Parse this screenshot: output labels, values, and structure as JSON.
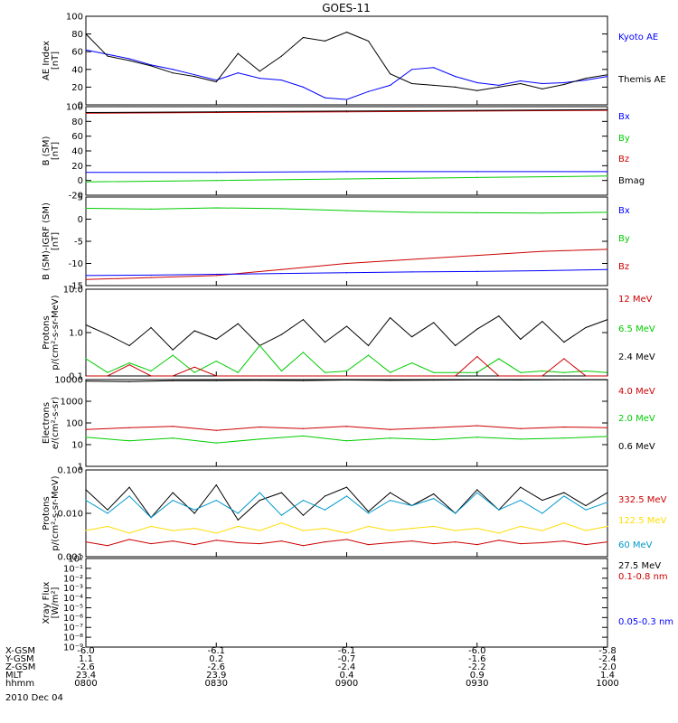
{
  "title": "GOES-11",
  "date_label": "2010 Dec 04",
  "colors": {
    "black": "#000000",
    "blue": "#0000ff",
    "green": "#00cc00",
    "red": "#cc0000",
    "yellow": "#ffdd00",
    "cyan": "#0099cc"
  },
  "chart_data": [
    {
      "type": "line",
      "panel": "ae",
      "ylabel": [
        "AE Index",
        "[nT]"
      ],
      "ylim": [
        0,
        100
      ],
      "yscale": "linear",
      "yticks": [
        "100",
        "80",
        "60",
        "40",
        "20",
        "0"
      ],
      "x": [
        "0800",
        "0805",
        "0810",
        "0815",
        "0820",
        "0825",
        "0830",
        "0835",
        "0840",
        "0845",
        "0850",
        "0855",
        "0900",
        "0905",
        "0910",
        "0915",
        "0920",
        "0925",
        "0930",
        "0935",
        "0940",
        "0945",
        "0950",
        "0955",
        "1000"
      ],
      "series": [
        {
          "name": "Kyoto AE",
          "color": "blue",
          "values": [
            62,
            57,
            52,
            45,
            40,
            34,
            28,
            36,
            30,
            28,
            20,
            8,
            6,
            15,
            22,
            40,
            42,
            32,
            25,
            22,
            27,
            24,
            25,
            28,
            32
          ]
        },
        {
          "name": "Themis AE",
          "color": "black",
          "values": [
            80,
            55,
            50,
            44,
            36,
            32,
            26,
            58,
            38,
            55,
            76,
            72,
            82,
            72,
            35,
            24,
            22,
            20,
            16,
            20,
            24,
            18,
            23,
            30,
            34
          ]
        }
      ],
      "legend": [
        {
          "text": "Kyoto AE",
          "color": "blue"
        },
        {
          "text": "Themis AE",
          "color": "black"
        }
      ]
    },
    {
      "type": "line",
      "panel": "b",
      "ylabel": [
        "B (SM)",
        "[nT]"
      ],
      "ylim": [
        -20,
        100
      ],
      "yscale": "linear",
      "yticks": [
        "100",
        "80",
        "60",
        "40",
        "20",
        "0",
        "-20"
      ],
      "x": [
        "0800",
        "0830",
        "0900",
        "0930",
        "1000"
      ],
      "series": [
        {
          "name": "Bz",
          "color": "red",
          "values": [
            91,
            92,
            93,
            94,
            95
          ]
        },
        {
          "name": "Bmag",
          "color": "black",
          "values": [
            92,
            93,
            94,
            95,
            96
          ]
        },
        {
          "name": "Bx",
          "color": "blue",
          "values": [
            11,
            11,
            12,
            12,
            12
          ]
        },
        {
          "name": "By",
          "color": "green",
          "values": [
            -2,
            0,
            2,
            4,
            6
          ]
        }
      ],
      "legend": [
        {
          "text": "Bx",
          "color": "blue"
        },
        {
          "text": "By",
          "color": "green"
        },
        {
          "text": "Bz",
          "color": "red"
        },
        {
          "text": "Bmag",
          "color": "black"
        }
      ]
    },
    {
      "type": "line",
      "panel": "dbigrf",
      "ylabel": [
        "B (SM)-IGRF (SM)",
        "[nT]"
      ],
      "ylim": [
        -16,
        6
      ],
      "yscale": "linear",
      "yticks": [
        "5",
        "0",
        "-5",
        "-10",
        "-15"
      ],
      "x": [
        "0800",
        "0815",
        "0830",
        "0845",
        "0900",
        "0915",
        "0930",
        "0945",
        "1000"
      ],
      "series": [
        {
          "name": "By",
          "color": "green",
          "values": [
            3.2,
            3.0,
            3.3,
            3.1,
            2.6,
            2.2,
            2.1,
            2.0,
            2.2
          ]
        },
        {
          "name": "Bz",
          "color": "red",
          "values": [
            -14.5,
            -14.0,
            -13.5,
            -12.0,
            -10.5,
            -9.5,
            -8.5,
            -7.5,
            -7.0
          ]
        },
        {
          "name": "Bx",
          "color": "blue",
          "values": [
            -13.5,
            -13.4,
            -13.2,
            -13.0,
            -12.8,
            -12.6,
            -12.5,
            -12.3,
            -12.0
          ]
        }
      ],
      "legend": [
        {
          "text": "Bx",
          "color": "blue"
        },
        {
          "text": "By",
          "color": "green"
        },
        {
          "text": "Bz",
          "color": "red"
        }
      ]
    },
    {
      "type": "line",
      "panel": "protons_low",
      "ylabel": [
        "Protons",
        "p/(cm²-s-sr-MeV)"
      ],
      "ylim": [
        0.1,
        10
      ],
      "yscale": "log",
      "yticks": [
        "10.0",
        "1.0",
        "0.1"
      ],
      "x": [
        "0800",
        "0805",
        "0810",
        "0815",
        "0820",
        "0825",
        "0830",
        "0835",
        "0840",
        "0845",
        "0850",
        "0855",
        "0900",
        "0905",
        "0910",
        "0915",
        "0920",
        "0925",
        "0930",
        "0935",
        "0940",
        "0945",
        "0950",
        "0955",
        "1000"
      ],
      "series": [
        {
          "name": "2.4 MeV",
          "color": "black",
          "values": [
            1.5,
            0.9,
            0.5,
            1.3,
            0.4,
            1.1,
            0.7,
            1.6,
            0.5,
            0.9,
            2.0,
            0.6,
            1.4,
            0.5,
            2.2,
            0.8,
            1.7,
            0.5,
            1.2,
            2.4,
            0.7,
            1.8,
            0.6,
            1.3,
            2.0
          ]
        },
        {
          "name": "6.5 MeV",
          "color": "green",
          "values": [
            0.25,
            0.12,
            0.2,
            0.13,
            0.3,
            0.12,
            0.22,
            0.12,
            0.5,
            0.13,
            0.35,
            0.12,
            0.13,
            0.3,
            0.12,
            0.2,
            0.12,
            0.12,
            0.12,
            0.25,
            0.12,
            0.13,
            0.12,
            0.13,
            0.12
          ]
        },
        {
          "name": "12 MeV",
          "color": "red",
          "values": [
            0.1,
            0.1,
            0.18,
            0.1,
            0.1,
            0.16,
            0.1,
            0.1,
            0.1,
            0.1,
            0.1,
            0.1,
            0.1,
            0.1,
            0.1,
            0.1,
            0.1,
            0.1,
            0.28,
            0.1,
            0.1,
            0.1,
            0.25,
            0.1,
            0.1
          ]
        }
      ],
      "legend": [
        {
          "text": "12 MeV",
          "color": "red"
        },
        {
          "text": "6.5 MeV",
          "color": "green"
        },
        {
          "text": "2.4 MeV",
          "color": "black"
        }
      ]
    },
    {
      "type": "line",
      "panel": "electrons",
      "ylabel": [
        "Electrons",
        "e/(cm²-s-sr)"
      ],
      "ylim": [
        1,
        10000
      ],
      "yscale": "log",
      "yticks": [
        "10000",
        "1000",
        "100",
        "10",
        "1"
      ],
      "x": [
        "0800",
        "0810",
        "0820",
        "0830",
        "0840",
        "0850",
        "0900",
        "0910",
        "0920",
        "0930",
        "0940",
        "0950",
        "1000"
      ],
      "series": [
        {
          "name": "0.6 MeV",
          "color": "black",
          "values": [
            8500,
            8000,
            8800,
            9000,
            9200,
            9000,
            9500,
            9200,
            9400,
            9600,
            9500,
            9700,
            9800
          ]
        },
        {
          "name": "4.0 MeV",
          "color": "red",
          "values": [
            50,
            60,
            70,
            45,
            65,
            55,
            70,
            50,
            60,
            75,
            55,
            65,
            60
          ]
        },
        {
          "name": "2.0 MeV",
          "color": "green",
          "values": [
            22,
            15,
            20,
            12,
            18,
            25,
            15,
            20,
            17,
            22,
            18,
            20,
            24
          ]
        }
      ],
      "legend": [
        {
          "text": "4.0 MeV",
          "color": "red"
        },
        {
          "text": "2.0 MeV",
          "color": "green"
        },
        {
          "text": "0.6 MeV",
          "color": "black"
        }
      ]
    },
    {
      "type": "line",
      "panel": "protons_high",
      "ylabel": [
        "Protons",
        "p/(cm²-s-sr-MeV)"
      ],
      "ylim": [
        0.001,
        0.1
      ],
      "yscale": "log",
      "yticks": [
        "0.100",
        "0.010",
        "0.001"
      ],
      "x": [
        "0800",
        "0805",
        "0810",
        "0815",
        "0820",
        "0825",
        "0830",
        "0835",
        "0840",
        "0845",
        "0850",
        "0855",
        "0900",
        "0905",
        "0910",
        "0915",
        "0920",
        "0925",
        "0930",
        "0935",
        "0940",
        "0945",
        "0950",
        "0955",
        "1000"
      ],
      "series": [
        {
          "name": "27.5 MeV",
          "color": "black",
          "values": [
            0.035,
            0.012,
            0.04,
            0.008,
            0.03,
            0.01,
            0.045,
            0.007,
            0.02,
            0.03,
            0.009,
            0.025,
            0.04,
            0.011,
            0.03,
            0.015,
            0.028,
            0.01,
            0.035,
            0.012,
            0.04,
            0.02,
            0.03,
            0.015,
            0.03
          ]
        },
        {
          "name": "60 MeV",
          "color": "cyan",
          "values": [
            0.02,
            0.01,
            0.025,
            0.008,
            0.02,
            0.012,
            0.02,
            0.01,
            0.03,
            0.009,
            0.02,
            0.012,
            0.025,
            0.01,
            0.02,
            0.015,
            0.022,
            0.01,
            0.03,
            0.012,
            0.02,
            0.01,
            0.025,
            0.012,
            0.018
          ]
        },
        {
          "name": "122.5 MeV",
          "color": "yellow",
          "values": [
            0.004,
            0.005,
            0.0035,
            0.005,
            0.004,
            0.0045,
            0.0035,
            0.005,
            0.004,
            0.006,
            0.004,
            0.0045,
            0.0035,
            0.005,
            0.004,
            0.0045,
            0.005,
            0.004,
            0.0045,
            0.0035,
            0.005,
            0.004,
            0.006,
            0.004,
            0.005
          ]
        },
        {
          "name": "332.5 MeV",
          "color": "red",
          "values": [
            0.0022,
            0.0018,
            0.0025,
            0.002,
            0.0023,
            0.0019,
            0.0024,
            0.0021,
            0.002,
            0.0023,
            0.0018,
            0.0022,
            0.0025,
            0.0019,
            0.0021,
            0.0023,
            0.002,
            0.0022,
            0.0019,
            0.0024,
            0.002,
            0.0021,
            0.0023,
            0.0019,
            0.0022
          ]
        }
      ],
      "legend": [
        {
          "text": "332.5 MeV",
          "color": "red"
        },
        {
          "text": "122.5 MeV",
          "color": "yellow"
        },
        {
          "text": "60 MeV",
          "color": "cyan"
        },
        {
          "text": "27.5 MeV",
          "color": "black"
        }
      ]
    },
    {
      "type": "line",
      "panel": "xray",
      "ylabel": [
        "Xray Flux",
        "[W/m²]"
      ],
      "ylim": [
        1e-09,
        1
      ],
      "yscale": "log",
      "yticks": [
        "10⁰",
        "10⁻¹",
        "10⁻²",
        "10⁻³",
        "10⁻⁴",
        "10⁻⁵",
        "10⁻⁶",
        "10⁻⁷",
        "10⁻⁸",
        "10⁻⁹"
      ],
      "x": [],
      "series": [],
      "legend": [
        {
          "text": "0.1-0.8 nm",
          "color": "red"
        },
        {
          "text": "0.05-0.3 nm",
          "color": "blue"
        }
      ]
    }
  ],
  "x_axis": {
    "row_labels": [
      "X-GSM",
      "Y-GSM",
      "Z-GSM",
      "MLT",
      "hhmm"
    ],
    "ticks": [
      {
        "values": [
          "-6.0",
          "1.1",
          "-2.6",
          "23.4",
          "0800"
        ]
      },
      {
        "values": [
          "-6.1",
          "0.2",
          "-2.6",
          "23.9",
          "0830"
        ]
      },
      {
        "values": [
          "-6.1",
          "-0.7",
          "-2.4",
          "0.4",
          "0900"
        ]
      },
      {
        "values": [
          "-6.0",
          "-1.6",
          "-2.2",
          "0.9",
          "0930"
        ]
      },
      {
        "values": [
          "-5.8",
          "-2.4",
          "-2.0",
          "1.4",
          "1000"
        ]
      }
    ]
  }
}
